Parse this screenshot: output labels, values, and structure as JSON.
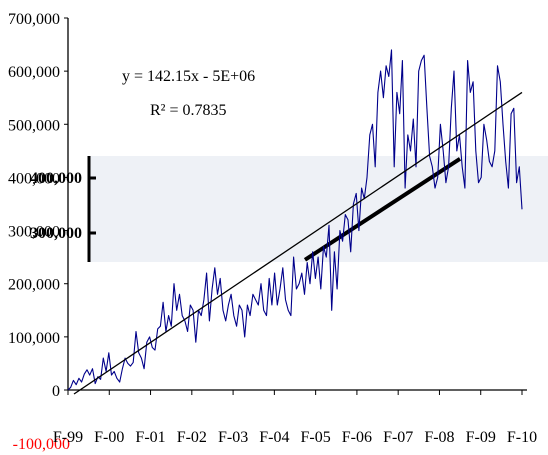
{
  "chart_data": {
    "type": "line",
    "title": "",
    "xlabel": "",
    "ylabel": "",
    "ylim": [
      -100000,
      700000
    ],
    "y_ticks": [
      -100000,
      0,
      100000,
      200000,
      300000,
      400000,
      500000,
      600000,
      700000
    ],
    "y_tick_labels": [
      "-100,000",
      "0",
      "100,000",
      "200,000",
      "300,000",
      "400,000",
      "500,000",
      "600,000",
      "700,000"
    ],
    "x_tick_labels": [
      "F-99",
      "F-00",
      "F-01",
      "F-02",
      "F-03",
      "F-04",
      "F-05",
      "F-06",
      "F-07",
      "F-08",
      "F-09",
      "F-10"
    ],
    "grid": false,
    "legend": "none",
    "series": [
      {
        "style": "line",
        "color": "#00008b",
        "values": [
          0,
          5000,
          18000,
          10000,
          22000,
          15000,
          30000,
          38000,
          28000,
          40000,
          12000,
          25000,
          20000,
          60000,
          35000,
          70000,
          28000,
          35000,
          22000,
          15000,
          40000,
          60000,
          50000,
          45000,
          52000,
          110000,
          70000,
          60000,
          40000,
          90000,
          100000,
          80000,
          75000,
          115000,
          120000,
          165000,
          110000,
          140000,
          120000,
          200000,
          150000,
          180000,
          140000,
          130000,
          110000,
          160000,
          150000,
          90000,
          150000,
          140000,
          170000,
          220000,
          130000,
          190000,
          230000,
          180000,
          210000,
          150000,
          130000,
          160000,
          180000,
          140000,
          120000,
          160000,
          150000,
          100000,
          160000,
          140000,
          180000,
          170000,
          160000,
          200000,
          150000,
          140000,
          210000,
          160000,
          220000,
          160000,
          190000,
          230000,
          170000,
          150000,
          140000,
          250000,
          190000,
          200000,
          220000,
          180000,
          240000,
          200000,
          260000,
          210000,
          250000,
          190000,
          270000,
          250000,
          310000,
          150000,
          260000,
          190000,
          300000,
          280000,
          330000,
          320000,
          260000,
          350000,
          370000,
          300000,
          380000,
          360000,
          400000,
          480000,
          500000,
          420000,
          560000,
          600000,
          550000,
          610000,
          590000,
          640000,
          420000,
          560000,
          520000,
          620000,
          380000,
          480000,
          450000,
          510000,
          420000,
          600000,
          620000,
          630000,
          530000,
          440000,
          420000,
          380000,
          400000,
          500000,
          450000,
          390000,
          420000,
          530000,
          600000,
          450000,
          480000,
          420000,
          380000,
          620000,
          560000,
          580000,
          450000,
          390000,
          400000,
          500000,
          470000,
          430000,
          420000,
          450000,
          610000,
          580000,
          500000,
          430000,
          380000,
          520000,
          530000,
          390000,
          420000,
          340000
        ]
      }
    ],
    "trendline": {
      "equation": "y = 142.15x - 5E+06",
      "r2": "R² = 0.7835",
      "start": 0,
      "end": 560000
    },
    "overlay_band": {
      "labels": [
        "400,000",
        "300,000"
      ],
      "thick_line": {
        "start": 245000,
        "end": 435000
      }
    }
  }
}
